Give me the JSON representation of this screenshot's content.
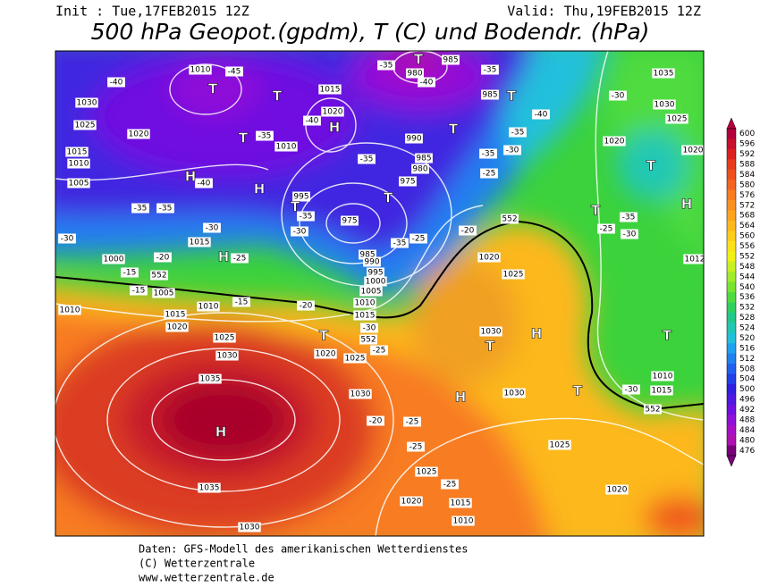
{
  "header": {
    "init": "Init : Tue,17FEB2015 12Z",
    "valid": "Valid: Thu,19FEB2015 12Z",
    "title": "500 hPa Geopot.(gpdm), T (C) und Bodendr. (hPa)"
  },
  "colorbar": {
    "levels": [
      600,
      596,
      592,
      588,
      584,
      580,
      576,
      572,
      568,
      564,
      560,
      556,
      552,
      548,
      544,
      540,
      536,
      532,
      528,
      524,
      520,
      516,
      512,
      508,
      504,
      500,
      496,
      492,
      488,
      484,
      480,
      476
    ],
    "colors": [
      "#b4003c",
      "#c8102e",
      "#dc2020",
      "#e83c1e",
      "#f0501e",
      "#f46420",
      "#f87c20",
      "#fa9020",
      "#fca41e",
      "#fdb81c",
      "#fecc1a",
      "#fee018",
      "#f0f014",
      "#c8f020",
      "#a0ec28",
      "#78e430",
      "#50dc40",
      "#30d060",
      "#20c88c",
      "#20c8b4",
      "#20c0dc",
      "#20a0f0",
      "#2080f0",
      "#2060f0",
      "#2040e8",
      "#3020e0",
      "#5018e0",
      "#7010e0",
      "#9010d8",
      "#a810c8",
      "#b010b0",
      "#780078"
    ]
  },
  "map": {
    "labels": [
      "1010",
      "-45",
      "-40",
      "1030",
      "1025",
      "1020",
      "1015",
      "1010",
      "1005",
      "-40",
      "-35",
      "-30",
      "1015",
      "-25",
      "-30",
      "1000",
      "-20",
      "-15",
      "-15",
      "1005",
      "1010",
      "1010",
      "-15",
      "1015",
      "1020",
      "1025",
      "1030",
      "1035",
      "1035",
      "1030",
      "1020",
      "1025",
      "-20",
      "-25",
      "1030",
      "-20",
      "-25",
      "-25",
      "1025",
      "1020",
      "1015",
      "1010",
      "-25",
      "1030",
      "1030",
      "1025",
      "1020",
      "1020",
      "1025",
      "-20",
      "552",
      "552",
      "552",
      "552",
      "-30",
      "1010",
      "1015",
      "-25",
      "-30",
      "-35",
      "1012",
      "1035",
      "1030",
      "1025",
      "-30",
      "1020",
      "1020",
      "-40",
      "-35",
      "-35",
      "-30",
      "-35",
      "985",
      "985",
      "980",
      "-35",
      "-40",
      "1015",
      "1020",
      "-40",
      "1010",
      "-35",
      "990",
      "985",
      "980",
      "975",
      "-35",
      "-25",
      "995",
      "-35",
      "-30",
      "975",
      "-35",
      "-25",
      "985",
      "990",
      "995",
      "1000",
      "1005",
      "1010",
      "1015",
      "-30",
      "-35"
    ],
    "centers": [
      "H",
      "H",
      "H",
      "H",
      "H",
      "T",
      "T",
      "T",
      "T",
      "T",
      "T",
      "T",
      "T",
      "T",
      "H",
      "H",
      "T",
      "T",
      "T",
      "T",
      "H",
      "T"
    ]
  },
  "footer": {
    "source": "Daten: GFS-Modell des amerikanischen Wetterdienstes",
    "copyright": "(C) Wetterzentrale",
    "url": "www.wetterzentrale.de"
  }
}
